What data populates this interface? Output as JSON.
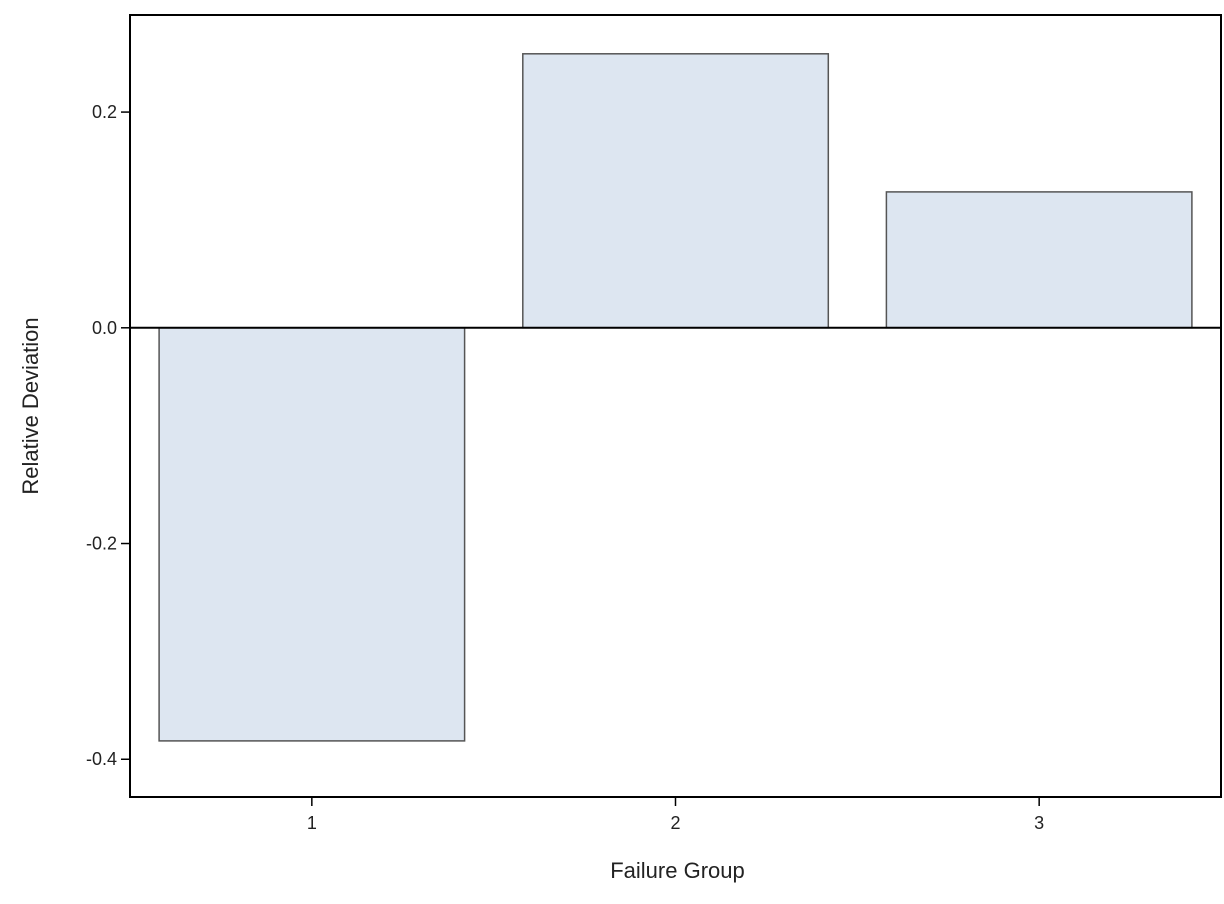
{
  "chart_data": {
    "type": "bar",
    "title": "",
    "xlabel": "Failure Group",
    "ylabel": "Relative Deviation",
    "categories": [
      "1",
      "2",
      "3"
    ],
    "values": [
      -0.383,
      0.254,
      0.126
    ],
    "ylim": [
      -0.435,
      0.29
    ],
    "yticks": [
      -0.4,
      -0.2,
      0.0,
      0.2
    ],
    "ytick_labels": [
      "-0.4",
      "-0.2",
      "0.0",
      "0.2"
    ],
    "reference_line": 0,
    "grid": false,
    "legend": "none",
    "colors": {
      "bar_fill": "#dde6f1",
      "bar_stroke": "#555555",
      "axis": "#000000",
      "text": "#222222"
    }
  }
}
